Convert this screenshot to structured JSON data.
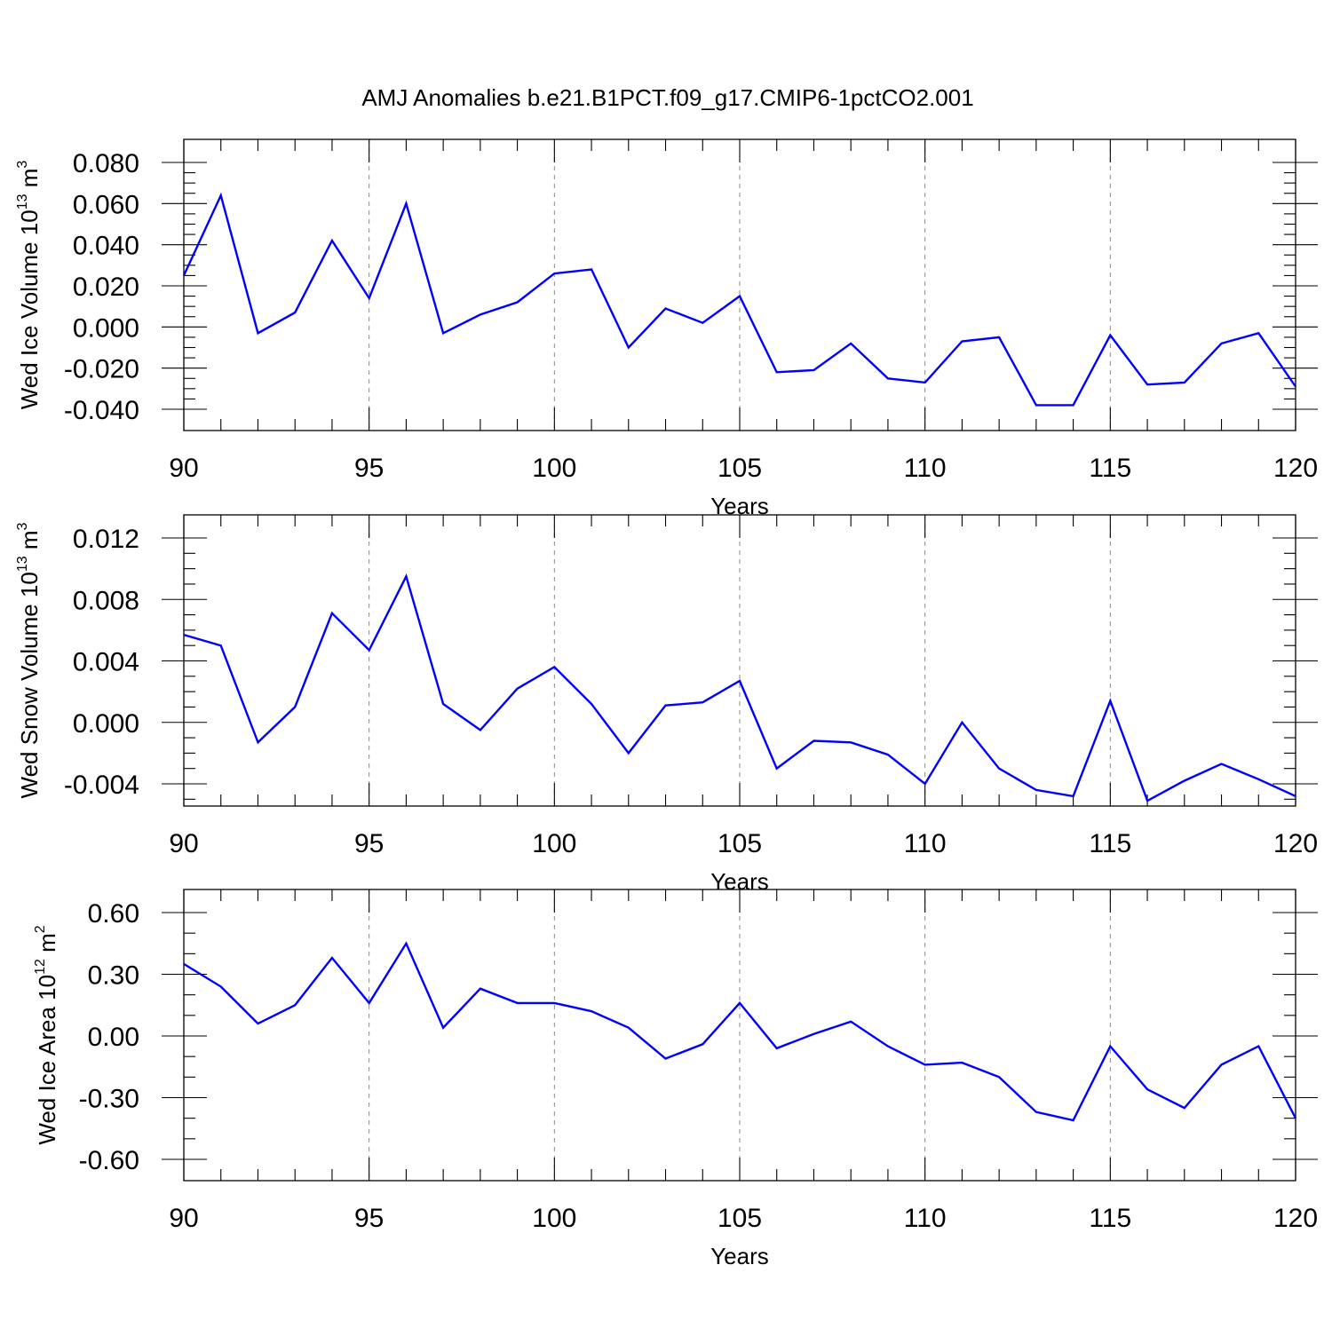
{
  "title": "AMJ Anomalies b.e21.B1PCT.f09_g17.CMIP6-1pctCO2.001",
  "colors": {
    "line": "#0000ff",
    "grid": "#8a8a8a",
    "axis": "#000000"
  },
  "chart_data": [
    {
      "type": "line",
      "ylabel": {
        "main": "Wed Ice Volume 10",
        "exp": "13",
        "unit": " m",
        "unit_exp": "3"
      },
      "xlabel": "Years",
      "xlim": [
        90,
        120
      ],
      "ylim": [
        -0.04,
        0.08
      ],
      "yticks": [
        -0.04,
        -0.02,
        0.0,
        0.02,
        0.04,
        0.06,
        0.08
      ],
      "ytick_labels": [
        "-0.040",
        "-0.020",
        "0.000",
        "0.020",
        "0.040",
        "0.060",
        "0.080"
      ],
      "yminor_step": 0.005,
      "xticks": [
        90,
        95,
        100,
        105,
        110,
        115,
        120
      ],
      "xtick_labels": [
        "90",
        "95",
        "100",
        "105",
        "110",
        "115",
        "120"
      ],
      "grid": "x-dashed",
      "x": [
        90,
        91,
        92,
        93,
        94,
        95,
        96,
        97,
        98,
        99,
        100,
        101,
        102,
        103,
        104,
        105,
        106,
        107,
        108,
        109,
        110,
        111,
        112,
        113,
        114,
        115,
        116,
        117,
        118,
        119,
        120
      ],
      "values": [
        0.025,
        0.064,
        -0.003,
        0.007,
        0.042,
        0.014,
        0.06,
        -0.003,
        0.006,
        0.012,
        0.026,
        0.028,
        -0.01,
        0.009,
        0.002,
        0.015,
        -0.022,
        -0.021,
        -0.008,
        -0.025,
        -0.027,
        -0.007,
        -0.005,
        -0.038,
        -0.038,
        -0.004,
        -0.028,
        -0.027,
        -0.008,
        -0.003,
        -0.029
      ]
    },
    {
      "type": "line",
      "ylabel": {
        "main": "Wed Snow Volume 10",
        "exp": "13",
        "unit": " m",
        "unit_exp": "3"
      },
      "xlabel": "Years",
      "xlim": [
        90,
        120
      ],
      "ylim": [
        -0.006,
        0.0122
      ],
      "yticks": [
        -0.004,
        0.0,
        0.004,
        0.008,
        0.012
      ],
      "ytick_labels": [
        "-0.004",
        "0.000",
        "0.004",
        "0.008",
        "0.012"
      ],
      "yminor_step": 0.001,
      "xticks": [
        90,
        95,
        100,
        105,
        110,
        115,
        120
      ],
      "xtick_labels": [
        "90",
        "95",
        "100",
        "105",
        "110",
        "115",
        "120"
      ],
      "grid": "x-dashed",
      "x": [
        90,
        91,
        92,
        93,
        94,
        95,
        96,
        97,
        98,
        99,
        100,
        101,
        102,
        103,
        104,
        105,
        106,
        107,
        108,
        109,
        110,
        111,
        112,
        113,
        114,
        115,
        116,
        117,
        118,
        119,
        120
      ],
      "values": [
        0.0057,
        0.005,
        -0.0013,
        0.001,
        0.0071,
        0.0047,
        0.0095,
        0.0012,
        -0.0005,
        0.0022,
        0.0036,
        0.0012,
        -0.002,
        0.0011,
        0.0013,
        0.0027,
        -0.003,
        -0.0012,
        -0.0013,
        -0.0021,
        -0.004,
        0.0,
        -0.003,
        -0.0044,
        -0.0048,
        0.0014,
        -0.0051,
        -0.0038,
        -0.0027,
        -0.0037,
        -0.0048
      ]
    },
    {
      "type": "line",
      "ylabel": {
        "main": "Wed Ice Area 10",
        "exp": "12",
        "unit": " m",
        "unit_exp": "2"
      },
      "xlabel": "Years",
      "xlim": [
        90,
        120
      ],
      "ylim": [
        -0.6,
        0.6
      ],
      "yticks": [
        -0.6,
        -0.3,
        0.0,
        0.3,
        0.6
      ],
      "ytick_labels": [
        "-0.60",
        "-0.30",
        "0.00",
        "0.30",
        "0.60"
      ],
      "yminor_step": 0.1,
      "xticks": [
        90,
        95,
        100,
        105,
        110,
        115,
        120
      ],
      "xtick_labels": [
        "90",
        "95",
        "100",
        "105",
        "110",
        "115",
        "120"
      ],
      "grid": "x-dashed",
      "x": [
        90,
        91,
        92,
        93,
        94,
        95,
        96,
        97,
        98,
        99,
        100,
        101,
        102,
        103,
        104,
        105,
        106,
        107,
        108,
        109,
        110,
        111,
        112,
        113,
        114,
        115,
        116,
        117,
        118,
        119,
        120
      ],
      "values": [
        0.35,
        0.24,
        0.06,
        0.15,
        0.38,
        0.16,
        0.45,
        0.04,
        0.23,
        0.16,
        0.16,
        0.12,
        0.04,
        -0.11,
        -0.04,
        0.16,
        -0.06,
        0.01,
        0.07,
        -0.05,
        -0.14,
        -0.13,
        -0.2,
        -0.37,
        -0.41,
        -0.05,
        -0.26,
        -0.35,
        -0.14,
        -0.05,
        -0.4
      ]
    }
  ]
}
